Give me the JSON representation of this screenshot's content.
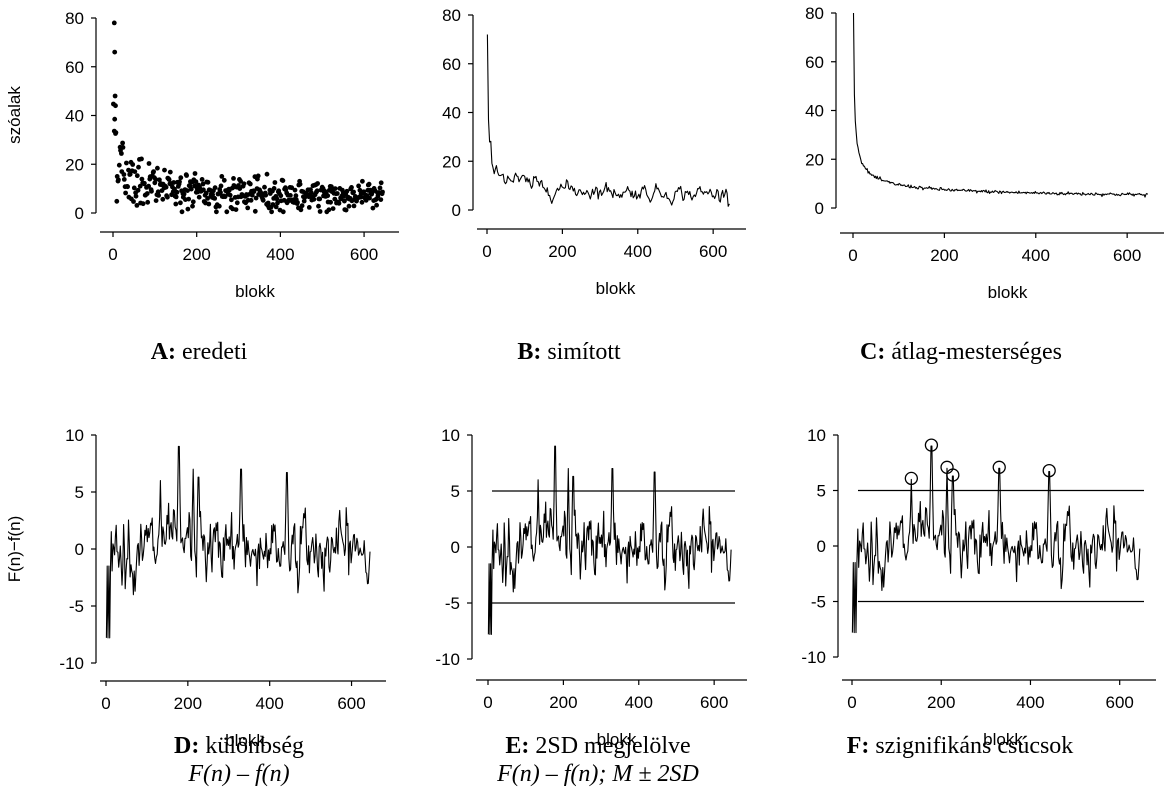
{
  "chart_data": [
    {
      "id": "A",
      "type": "scatter",
      "xlabel": "blokk",
      "ylabel": "szóalak",
      "xlim": [
        0,
        650
      ],
      "ylim": [
        0,
        80
      ],
      "xticks": [
        "0",
        "200",
        "400",
        "600"
      ],
      "yticks": [
        "0",
        "20",
        "40",
        "60",
        "80"
      ],
      "caption_letter": "A:",
      "caption_text": "eredeti",
      "series": [
        {
          "x": [],
          "y": []
        }
      ]
    },
    {
      "id": "B",
      "type": "line",
      "xlabel": "blokk",
      "ylabel": "",
      "xlim": [
        0,
        650
      ],
      "ylim": [
        0,
        80
      ],
      "xticks": [
        "0",
        "200",
        "400",
        "600"
      ],
      "yticks": [
        "0",
        "20",
        "40",
        "60",
        "80"
      ],
      "caption_letter": "B:",
      "caption_text": "simított",
      "series": [
        {
          "x": [],
          "y": []
        }
      ]
    },
    {
      "id": "C",
      "type": "line",
      "xlabel": "blokk",
      "ylabel": "",
      "xlim": [
        0,
        650
      ],
      "ylim": [
        0,
        80
      ],
      "xticks": [
        "0",
        "200",
        "400",
        "600"
      ],
      "yticks": [
        "0",
        "20",
        "40",
        "60",
        "80"
      ],
      "caption_letter": "C:",
      "caption_text": "átlag-mesterséges",
      "series": [
        {
          "x": [],
          "y": []
        }
      ]
    },
    {
      "id": "D",
      "type": "line",
      "xlabel": "blokk",
      "ylabel": "F(n)−f(n)",
      "xlim": [
        0,
        650
      ],
      "ylim": [
        -10,
        10
      ],
      "xticks": [
        "0",
        "200",
        "400",
        "600"
      ],
      "yticks": [
        "-10",
        "-5",
        "0",
        "5",
        "10"
      ],
      "caption_letter": "D:",
      "caption_text": "különbség",
      "caption_line2": "F(n) – f(n)",
      "series": [
        {
          "x": [],
          "y": []
        }
      ]
    },
    {
      "id": "E",
      "type": "line",
      "xlabel": "blokk",
      "ylabel": "",
      "xlim": [
        0,
        650
      ],
      "ylim": [
        -10,
        10
      ],
      "xticks": [
        "0",
        "200",
        "400",
        "600"
      ],
      "yticks": [
        "-10",
        "-5",
        "0",
        "5",
        "10"
      ],
      "hlines": [
        5,
        -5
      ],
      "caption_letter": "E:",
      "caption_text": "2SD megjelölve",
      "caption_line2": "F(n) – f(n); M ± 2SD",
      "series": [
        {
          "x": [],
          "y": []
        }
      ]
    },
    {
      "id": "F",
      "type": "line",
      "xlabel": "blokk",
      "ylabel": "",
      "xlim": [
        0,
        650
      ],
      "ylim": [
        -10,
        10
      ],
      "xticks": [
        "0",
        "200",
        "400",
        "600"
      ],
      "yticks": [
        "-10",
        "-5",
        "0",
        "5",
        "10"
      ],
      "hlines": [
        5,
        -5
      ],
      "peaks": [
        {
          "x": 133,
          "y": 6.0
        },
        {
          "x": 178,
          "y": 9.0
        },
        {
          "x": 213,
          "y": 7.0
        },
        {
          "x": 226,
          "y": 6.3
        },
        {
          "x": 330,
          "y": 7.0
        },
        {
          "x": 442,
          "y": 6.7
        }
      ],
      "caption_letter": "F:",
      "caption_text": "szignifikáns csúcsok",
      "series": [
        {
          "x": [],
          "y": []
        }
      ]
    }
  ]
}
